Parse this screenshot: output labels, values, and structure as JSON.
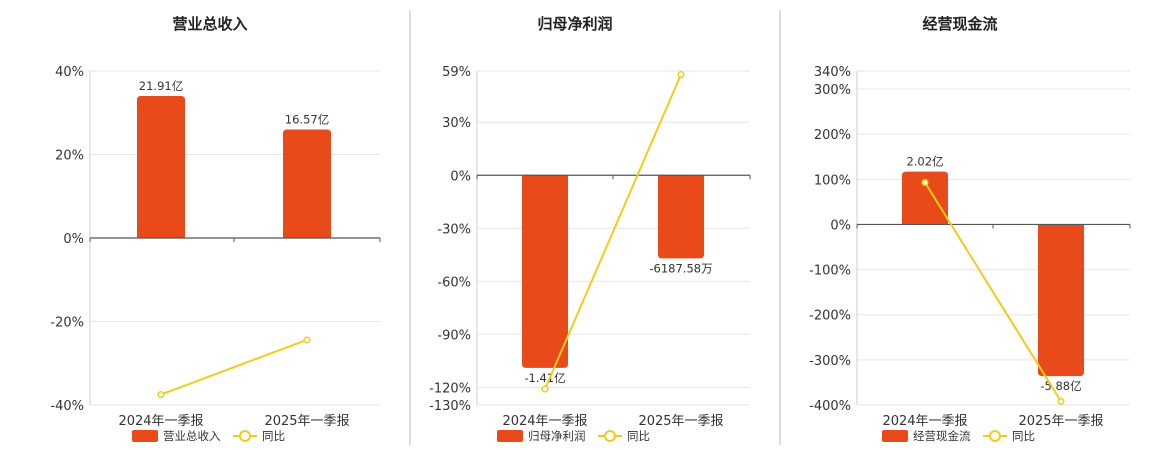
{
  "colors": {
    "bar": "#e84a1a",
    "line": "#f2cc1b",
    "grid": "#e6e6e6",
    "axis": "#555555",
    "divider": "#bbbbbb"
  },
  "chart_data": [
    {
      "type": "bar",
      "title": "营业总收入",
      "categories": [
        "2024年一季报",
        "2025年一季报"
      ],
      "ylim": [
        -40,
        40
      ],
      "yticks": [
        40,
        20,
        0,
        -20,
        -40
      ],
      "ytick_labels": [
        "40%",
        "20%",
        "0%",
        "-20%",
        "-40%"
      ],
      "series": [
        {
          "name": "营业总收入",
          "kind": "bar",
          "values": [
            34,
            26
          ],
          "labels": [
            "21.91亿",
            "16.57亿"
          ]
        },
        {
          "name": "同比",
          "kind": "line",
          "values": [
            -37.5,
            -24.4
          ]
        }
      ],
      "grid": true,
      "legend": "bottom"
    },
    {
      "type": "bar",
      "title": "归母净利润",
      "categories": [
        "2024年一季报",
        "2025年一季报"
      ],
      "ylim": [
        -130,
        59
      ],
      "yticks": [
        59,
        30,
        0,
        -30,
        -60,
        -90,
        -120,
        -130
      ],
      "ytick_labels": [
        "59%",
        "30%",
        "0%",
        "-30%",
        "-60%",
        "-90%",
        "-120%",
        "-130%"
      ],
      "series": [
        {
          "name": "归母净利润",
          "kind": "bar",
          "values": [
            -109,
            -47
          ],
          "labels": [
            "-1.41亿",
            "-6187.58万"
          ]
        },
        {
          "name": "同比",
          "kind": "line",
          "values": [
            -121,
            57
          ]
        }
      ],
      "grid": true,
      "legend": "bottom"
    },
    {
      "type": "bar",
      "title": "经营现金流",
      "categories": [
        "2024年一季报",
        "2025年一季报"
      ],
      "ylim": [
        -400,
        340
      ],
      "yticks": [
        340,
        300,
        200,
        100,
        0,
        -100,
        -200,
        -300,
        -400
      ],
      "ytick_labels": [
        "340%",
        "300%",
        "200%",
        "100%",
        "0%",
        "-100%",
        "-200%",
        "-300%",
        "-400%"
      ],
      "series": [
        {
          "name": "经营现金流",
          "kind": "bar",
          "values": [
            117,
            -336
          ],
          "labels": [
            "2.02亿",
            "-5.88亿"
          ]
        },
        {
          "name": "同比",
          "kind": "line",
          "values": [
            93,
            -392
          ]
        }
      ],
      "grid": true,
      "legend": "bottom"
    }
  ]
}
